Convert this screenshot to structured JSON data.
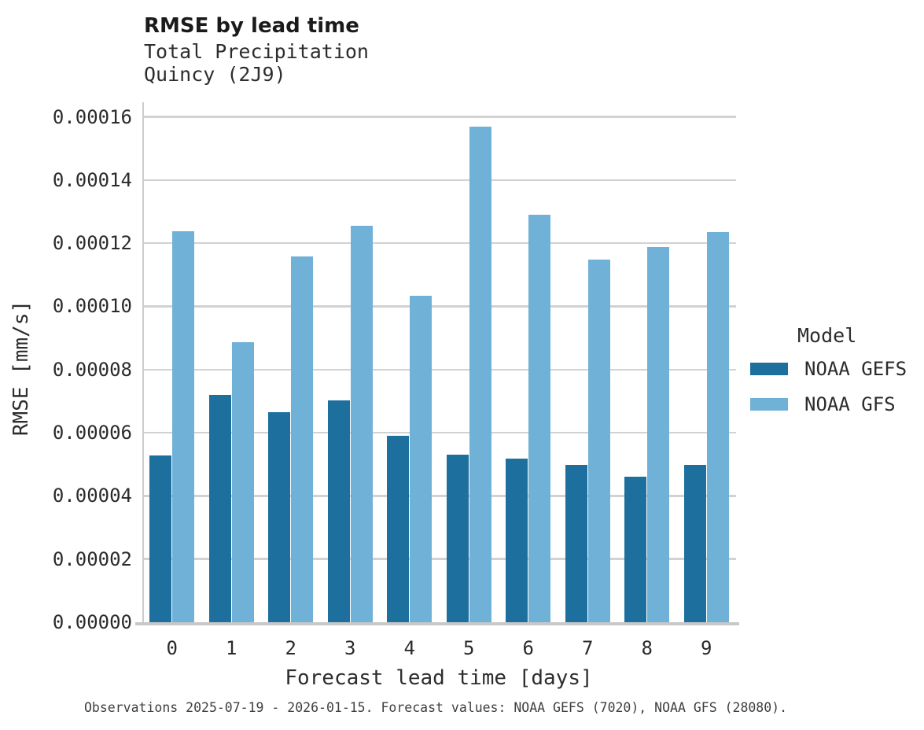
{
  "header": {
    "title": "RMSE by lead time",
    "subtitle_line1": "Total Precipitation",
    "subtitle_line2": "Quincy (2J9)"
  },
  "chart_data": {
    "type": "bar",
    "title": "RMSE by lead time",
    "subtitle": [
      "Total Precipitation",
      "Quincy (2J9)"
    ],
    "xlabel": "Forecast lead time [days]",
    "ylabel": "RMSE [mm/s]",
    "categories": [
      "0",
      "1",
      "2",
      "3",
      "4",
      "5",
      "6",
      "7",
      "8",
      "9"
    ],
    "series": [
      {
        "name": "NOAA GEFS",
        "color": "#1d6f9e",
        "values": [
          5.27e-05,
          7.19e-05,
          6.66e-05,
          7.03e-05,
          5.89e-05,
          5.3e-05,
          5.17e-05,
          4.97e-05,
          4.6e-05,
          4.97e-05
        ]
      },
      {
        "name": "NOAA GFS",
        "color": "#70b1d8",
        "values": [
          0.0001237,
          8.86e-05,
          0.0001158,
          0.0001254,
          0.0001034,
          0.0001568,
          0.000129,
          0.0001148,
          0.0001189,
          0.0001234
        ]
      }
    ],
    "ylim": [
      0,
      0.00016
    ],
    "yticks": [
      0.0,
      2e-05,
      4e-05,
      6e-05,
      8e-05,
      0.0001,
      0.00012,
      0.00014,
      0.00016
    ],
    "ytick_format_decimals": 5,
    "grid": "horizontal",
    "legend_position": "right"
  },
  "legend": {
    "title": "Model",
    "items": [
      {
        "label": "NOAA GEFS",
        "color": "#1d6f9e"
      },
      {
        "label": "NOAA GFS",
        "color": "#70b1d8"
      }
    ]
  },
  "footer": {
    "caption": "Observations 2025-07-19 - 2026-01-15. Forecast values: NOAA GEFS (7020), NOAA GFS (28080)."
  }
}
